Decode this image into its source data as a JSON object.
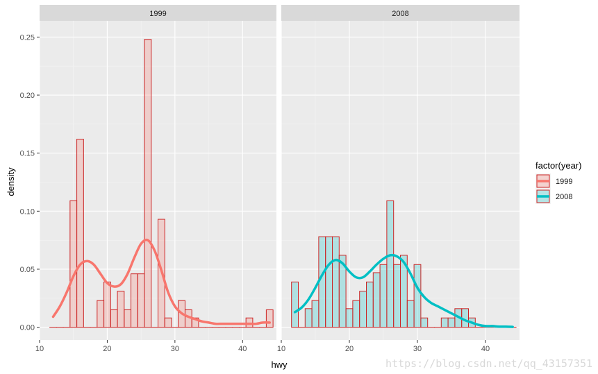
{
  "chart_data": {
    "type": "bar",
    "xlabel": "hwy",
    "ylabel": "density",
    "xlim": [
      10,
      45
    ],
    "ylim": [
      0,
      0.25
    ],
    "x_ticks": [
      10,
      20,
      30,
      40
    ],
    "y_ticks": [
      0.0,
      0.05,
      0.1,
      0.15,
      0.2,
      0.25
    ],
    "y_tick_labels": [
      "0.00",
      "0.05",
      "0.10",
      "0.15",
      "0.20",
      "0.25"
    ],
    "grid": true,
    "legend": {
      "title": "factor(year)",
      "position": "right",
      "entries": [
        "1999",
        "2008"
      ]
    },
    "bin_width": 1,
    "panels": [
      {
        "strip": "1999",
        "histogram": {
          "bin_centers": [
            12,
            13,
            14,
            15,
            16,
            17,
            18,
            19,
            20,
            21,
            22,
            23,
            24,
            25,
            26,
            27,
            28,
            29,
            30,
            31,
            32,
            33,
            34,
            35,
            36,
            37,
            38,
            39,
            40,
            41,
            42,
            43,
            44
          ],
          "values": [
            0,
            0,
            0,
            0.109,
            0.162,
            0,
            0,
            0.023,
            0.039,
            0.015,
            0.031,
            0.015,
            0.046,
            0.046,
            0.248,
            0,
            0.093,
            0.008,
            0,
            0.023,
            0.015,
            0.008,
            0,
            0,
            0,
            0,
            0,
            0,
            0,
            0.008,
            0,
            0,
            0.015
          ]
        },
        "density": {
          "x": [
            12,
            13,
            14,
            15,
            16,
            17,
            18,
            19,
            20,
            21,
            22,
            23,
            24,
            25,
            26,
            27,
            28,
            29,
            30,
            31,
            32,
            33,
            34,
            35,
            36,
            37,
            38,
            39,
            40,
            41,
            42,
            43,
            44
          ],
          "y": [
            0.009,
            0.018,
            0.03,
            0.044,
            0.054,
            0.057,
            0.054,
            0.046,
            0.038,
            0.035,
            0.037,
            0.046,
            0.06,
            0.072,
            0.075,
            0.066,
            0.049,
            0.03,
            0.018,
            0.012,
            0.009,
            0.007,
            0.005,
            0.004,
            0.003,
            0.003,
            0.003,
            0.003,
            0.003,
            0.003,
            0.003,
            0.004,
            0.004
          ]
        }
      },
      {
        "strip": "2008",
        "histogram": {
          "bin_centers": [
            12,
            13,
            14,
            15,
            16,
            17,
            18,
            19,
            20,
            21,
            22,
            23,
            24,
            25,
            26,
            27,
            28,
            29,
            30,
            31,
            32,
            33,
            34,
            35,
            36,
            37,
            38,
            39,
            40,
            41,
            42,
            43,
            44
          ],
          "values": [
            0.039,
            0,
            0.016,
            0.023,
            0.078,
            0.078,
            0.078,
            0.062,
            0.016,
            0.023,
            0.031,
            0.039,
            0.047,
            0.054,
            0.109,
            0.054,
            0.062,
            0.023,
            0.054,
            0.008,
            0,
            0,
            0.008,
            0.008,
            0.016,
            0.016,
            0.008,
            0,
            0,
            0,
            0,
            0,
            0
          ]
        },
        "density": {
          "x": [
            12,
            13,
            14,
            15,
            16,
            17,
            18,
            19,
            20,
            21,
            22,
            23,
            24,
            25,
            26,
            27,
            28,
            29,
            30,
            31,
            32,
            33,
            34,
            35,
            36,
            37,
            38,
            39,
            40,
            41,
            42,
            43,
            44
          ],
          "y": [
            0.013,
            0.017,
            0.024,
            0.034,
            0.045,
            0.054,
            0.058,
            0.055,
            0.048,
            0.043,
            0.043,
            0.048,
            0.054,
            0.059,
            0.062,
            0.061,
            0.056,
            0.046,
            0.034,
            0.026,
            0.021,
            0.018,
            0.015,
            0.012,
            0.009,
            0.006,
            0.004,
            0.002,
            0.001,
            0.001,
            0.0005,
            0.0005,
            0.0003
          ]
        }
      }
    ],
    "colors": {
      "fill_1999": "#f8766d",
      "fill_2008": "#00bfc4",
      "bar_outline": "#cc2222",
      "panel_bg": "#ebebeb",
      "strip_bg": "#d9d9d9",
      "grid": "#ffffff"
    }
  },
  "watermark": "https://blog.csdn.net/qq_43157351"
}
